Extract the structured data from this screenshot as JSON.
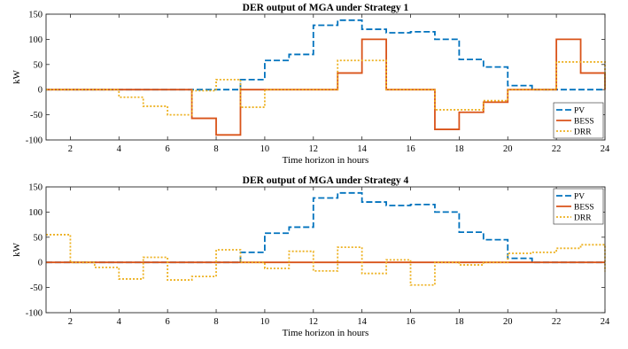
{
  "chart_data": [
    {
      "type": "line",
      "step": true,
      "title": "DER output of MGA under Strategy 1",
      "xlabel": "Time horizon in hours",
      "ylabel": "kW",
      "xlim": [
        1,
        24
      ],
      "ylim": [
        -100,
        150
      ],
      "xticks": [
        2,
        4,
        6,
        8,
        10,
        12,
        14,
        16,
        18,
        20,
        22,
        24
      ],
      "yticks": [
        -100,
        -50,
        0,
        50,
        100,
        150
      ],
      "legend_position": "bottom-right",
      "x": [
        1,
        2,
        3,
        4,
        5,
        6,
        7,
        8,
        9,
        10,
        11,
        12,
        13,
        14,
        15,
        16,
        17,
        18,
        19,
        20,
        21,
        22,
        23,
        24
      ],
      "series": [
        {
          "name": "PV",
          "color": "#0072BD",
          "style": "dashed",
          "values": [
            0,
            0,
            0,
            0,
            0,
            0,
            0,
            0,
            20,
            58,
            70,
            128,
            138,
            120,
            113,
            115,
            100,
            60,
            45,
            8,
            0,
            0,
            0,
            0
          ]
        },
        {
          "name": "BESS",
          "color": "#D95319",
          "style": "solid",
          "values": [
            0,
            0,
            0,
            0,
            0,
            0,
            -57,
            -90,
            0,
            0,
            0,
            0,
            33,
            100,
            0,
            0,
            -79,
            -45,
            -25,
            0,
            0,
            100,
            33,
            0
          ]
        },
        {
          "name": "DRR",
          "color": "#EDB120",
          "style": "dotted",
          "values": [
            0,
            0,
            0,
            -15,
            -33,
            -50,
            -2,
            20,
            -35,
            0,
            0,
            0,
            58,
            58,
            0,
            0,
            -40,
            -40,
            -22,
            0,
            0,
            55,
            55,
            0
          ]
        }
      ]
    },
    {
      "type": "line",
      "step": true,
      "title": "DER output of MGA under Strategy 4",
      "xlabel": "Time horizon in hours",
      "ylabel": "kW",
      "xlim": [
        1,
        24
      ],
      "ylim": [
        -100,
        150
      ],
      "xticks": [
        2,
        4,
        6,
        8,
        10,
        12,
        14,
        16,
        18,
        20,
        22,
        24
      ],
      "yticks": [
        -100,
        -50,
        0,
        50,
        100,
        150
      ],
      "legend_position": "top-right",
      "x": [
        1,
        2,
        3,
        4,
        5,
        6,
        7,
        8,
        9,
        10,
        11,
        12,
        13,
        14,
        15,
        16,
        17,
        18,
        19,
        20,
        21,
        22,
        23,
        24
      ],
      "series": [
        {
          "name": "PV",
          "color": "#0072BD",
          "style": "dashed",
          "values": [
            0,
            0,
            0,
            0,
            0,
            0,
            0,
            0,
            20,
            58,
            70,
            128,
            138,
            120,
            113,
            115,
            100,
            60,
            45,
            8,
            0,
            0,
            0,
            0
          ]
        },
        {
          "name": "BESS",
          "color": "#D95319",
          "style": "solid",
          "values": [
            0,
            0,
            0,
            0,
            0,
            0,
            0,
            0,
            0,
            0,
            0,
            0,
            0,
            0,
            0,
            0,
            0,
            0,
            0,
            0,
            0,
            0,
            0,
            0
          ]
        },
        {
          "name": "DRR",
          "color": "#EDB120",
          "style": "dotted",
          "values": [
            55,
            0,
            -10,
            -33,
            10,
            -35,
            -28,
            25,
            0,
            -12,
            22,
            -17,
            30,
            -22,
            5,
            -45,
            0,
            -5,
            0,
            18,
            20,
            28,
            35,
            -18
          ]
        }
      ]
    }
  ]
}
